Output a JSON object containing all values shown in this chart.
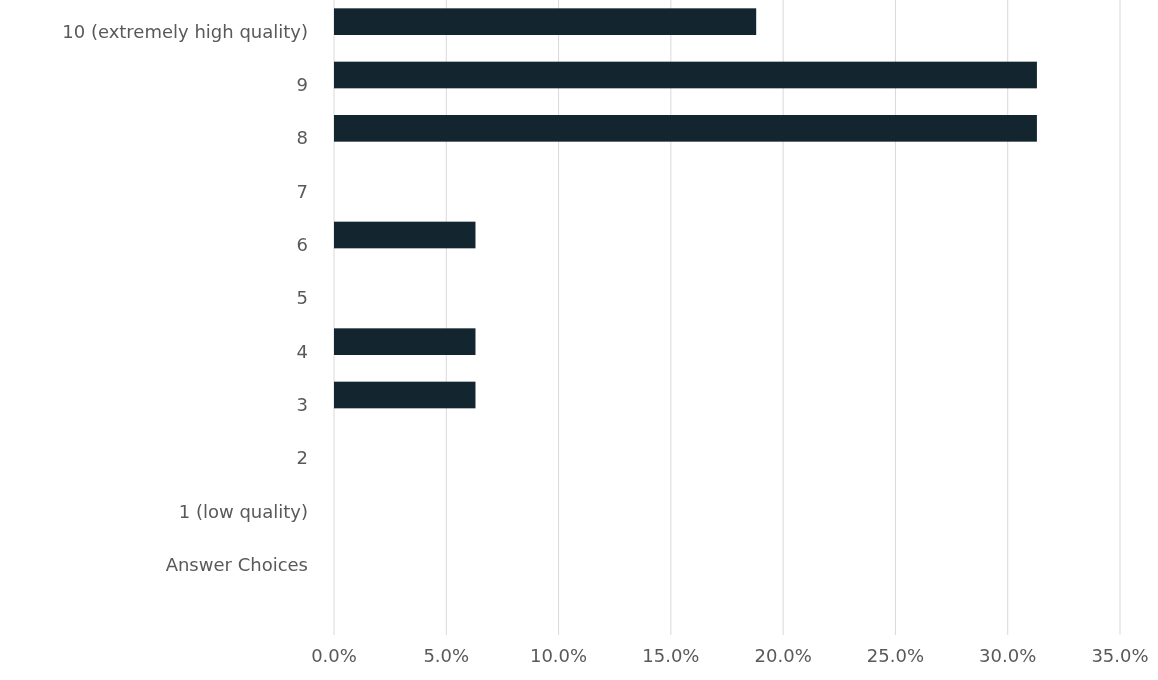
{
  "chart_data": {
    "type": "bar",
    "orientation": "horizontal",
    "categories": [
      "10 (extremely high quality)",
      "9",
      "8",
      "7",
      "6",
      "5",
      "4",
      "3",
      "2",
      "1 (low quality)",
      "Answer Choices",
      null
    ],
    "values": [
      18.8,
      31.3,
      31.3,
      0,
      6.3,
      0,
      6.3,
      6.3,
      0,
      0,
      null,
      null
    ],
    "color": "#13262f",
    "xlim": [
      0,
      35
    ],
    "xticks": [
      {
        "value": 0,
        "label": "0.0%"
      },
      {
        "value": 5,
        "label": "5.0%"
      },
      {
        "value": 10,
        "label": "10.0%"
      },
      {
        "value": 15,
        "label": "15.0%"
      },
      {
        "value": 20,
        "label": "20.0%"
      },
      {
        "value": 25,
        "label": "25.0%"
      },
      {
        "value": 30,
        "label": "30.0%"
      },
      {
        "value": 35,
        "label": "35.0%"
      }
    ],
    "grid": "x"
  }
}
